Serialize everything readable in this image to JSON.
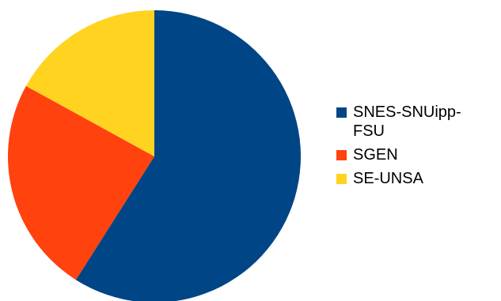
{
  "chart_data": {
    "type": "pie",
    "title": "",
    "legend_position": "right",
    "start_angle": "12 o'clock, clockwise",
    "series": [
      {
        "label": "SNES-SNUipp-FSU",
        "value": 59,
        "color": "#004586"
      },
      {
        "label": "SGEN",
        "value": 24,
        "color": "#ff420e"
      },
      {
        "label": "SE-UNSA",
        "value": 17,
        "color": "#ffd320"
      }
    ]
  }
}
